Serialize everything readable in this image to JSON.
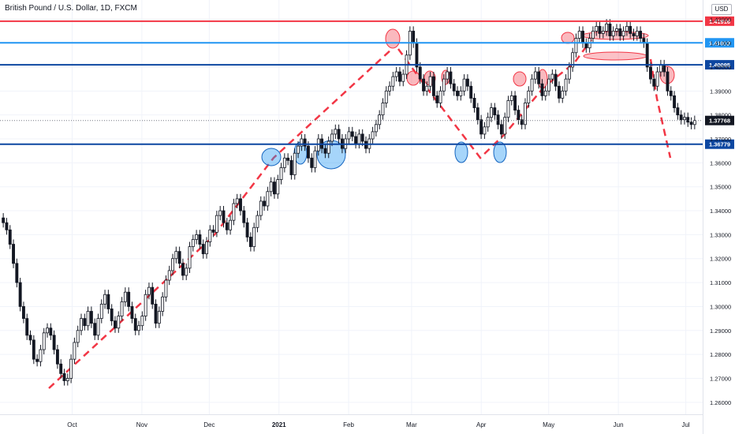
{
  "header": {
    "symbol_title": "British Pound / U.S. Dollar, 1D, FXCM",
    "currency_badge": "USD"
  },
  "colors": {
    "up": "#131722",
    "down": "#131722",
    "resistance_top": "#f23645",
    "resistance_mid": "#2196f3",
    "resistance_low": "#0d47a1",
    "support": "#0d47a1",
    "trend": "#f23645",
    "grid": "#f0f3fa",
    "axis_text": "#131722"
  },
  "chart_data": {
    "type": "candlestick",
    "title": "British Pound / U.S. Dollar, 1D, FXCM",
    "xlabel": "",
    "ylabel": "",
    "ylim": [
      1.255,
      1.428
    ],
    "y_ticks": [
      "1.26000",
      "1.27000",
      "1.28000",
      "1.29000",
      "1.30000",
      "1.31000",
      "1.32000",
      "1.33000",
      "1.34000",
      "1.35000",
      "1.36000",
      "1.37000",
      "1.38000",
      "1.39000",
      "1.40000",
      "1.41000",
      "1.42000"
    ],
    "x_ticks": [
      "Oct",
      "Nov",
      "Dec",
      "2021",
      "Feb",
      "Mar",
      "Apr",
      "May",
      "Jun",
      "Jul"
    ],
    "x_range": [
      "2020-09-01",
      "2021-07-05"
    ],
    "horizontal_levels": [
      {
        "value": 1.41916,
        "label": "1.41916",
        "color": "#f23645"
      },
      {
        "value": 1.41012,
        "label": "1.41012",
        "color": "#2196f3"
      },
      {
        "value": 1.40095,
        "label": "1.40095",
        "color": "#0d47a1"
      },
      {
        "value": 1.36779,
        "label": "1.36779",
        "color": "#0d47a1"
      }
    ],
    "last_price": {
      "value": 1.37768,
      "label": "1.37768"
    },
    "closes": [
      1.335,
      1.332,
      1.326,
      1.318,
      1.31,
      1.3,
      1.295,
      1.288,
      1.286,
      1.278,
      1.277,
      1.282,
      1.289,
      1.291,
      1.288,
      1.282,
      1.276,
      1.272,
      1.269,
      1.27,
      1.278,
      1.285,
      1.29,
      1.295,
      1.292,
      1.298,
      1.293,
      1.288,
      1.295,
      1.301,
      1.305,
      1.299,
      1.294,
      1.291,
      1.296,
      1.302,
      1.306,
      1.3,
      1.295,
      1.29,
      1.292,
      1.296,
      1.305,
      1.308,
      1.301,
      1.293,
      1.298,
      1.304,
      1.311,
      1.315,
      1.32,
      1.323,
      1.318,
      1.313,
      1.316,
      1.325,
      1.328,
      1.33,
      1.326,
      1.322,
      1.327,
      1.332,
      1.331,
      1.338,
      1.34,
      1.335,
      1.332,
      1.336,
      1.343,
      1.345,
      1.34,
      1.335,
      1.329,
      1.325,
      1.333,
      1.338,
      1.344,
      1.342,
      1.348,
      1.352,
      1.347,
      1.353,
      1.358,
      1.362,
      1.361,
      1.355,
      1.364,
      1.367,
      1.37,
      1.367,
      1.362,
      1.358,
      1.365,
      1.37,
      1.366,
      1.364,
      1.369,
      1.372,
      1.374,
      1.37,
      1.366,
      1.37,
      1.373,
      1.371,
      1.368,
      1.372,
      1.369,
      1.366,
      1.37,
      1.373,
      1.376,
      1.38,
      1.385,
      1.39,
      1.392,
      1.396,
      1.398,
      1.394,
      1.397,
      1.405,
      1.415,
      1.41,
      1.4,
      1.395,
      1.39,
      1.392,
      1.396,
      1.388,
      1.385,
      1.39,
      1.395,
      1.398,
      1.393,
      1.39,
      1.388,
      1.39,
      1.395,
      1.392,
      1.387,
      1.383,
      1.378,
      1.372,
      1.375,
      1.379,
      1.383,
      1.38,
      1.376,
      1.372,
      1.379,
      1.386,
      1.388,
      1.382,
      1.378,
      1.376,
      1.385,
      1.39,
      1.395,
      1.398,
      1.393,
      1.388,
      1.39,
      1.395,
      1.397,
      1.392,
      1.387,
      1.39,
      1.395,
      1.4,
      1.406,
      1.412,
      1.415,
      1.41,
      1.408,
      1.412,
      1.415,
      1.417,
      1.414,
      1.415,
      1.418,
      1.413,
      1.415,
      1.416,
      1.413,
      1.415,
      1.417,
      1.414,
      1.413,
      1.415,
      1.412,
      1.41,
      1.4,
      1.395,
      1.392,
      1.398,
      1.401,
      1.398,
      1.39,
      1.388,
      1.383,
      1.38,
      1.378,
      1.379,
      1.377,
      1.376,
      1.3777
    ]
  }
}
